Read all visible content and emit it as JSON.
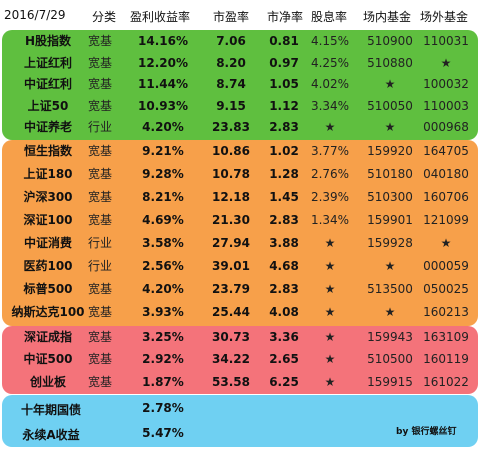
{
  "header": {
    "date": "2016/7/29",
    "category": "分类",
    "earnings_yield": "盈利收益率",
    "pe": "市盈率",
    "pb": "市净率",
    "dividend": "股息率",
    "exchange_fund": "场内基金",
    "otc_fund": "场外基金"
  },
  "colors": {
    "green": "#5fbf3f",
    "orange": "#f7a04a",
    "red": "#f4737a",
    "blue": "#6fd0f2"
  },
  "groups": [
    {
      "name": "green",
      "rows": [
        {
          "name": "H股指数",
          "category": "宽基",
          "yield": "14.16%",
          "pe": "7.06",
          "pb": "0.81",
          "dividend": "4.15%",
          "exchange": "510900",
          "otc": "110031"
        },
        {
          "name": "上证红利",
          "category": "宽基",
          "yield": "12.20%",
          "pe": "8.20",
          "pb": "0.97",
          "dividend": "4.25%",
          "exchange": "510880",
          "otc": "★"
        },
        {
          "name": "中证红利",
          "category": "宽基",
          "yield": "11.44%",
          "pe": "8.74",
          "pb": "1.05",
          "dividend": "4.02%",
          "exchange": "★",
          "otc": "100032"
        },
        {
          "name": "上证50",
          "category": "宽基",
          "yield": "10.93%",
          "pe": "9.15",
          "pb": "1.12",
          "dividend": "3.34%",
          "exchange": "510050",
          "otc": "110003"
        },
        {
          "name": "中证养老",
          "category": "行业",
          "yield": "4.20%",
          "pe": "23.83",
          "pb": "2.83",
          "dividend": "★",
          "exchange": "★",
          "otc": "000968"
        }
      ]
    },
    {
      "name": "orange",
      "rows": [
        {
          "name": "恒生指数",
          "category": "宽基",
          "yield": "9.21%",
          "pe": "10.86",
          "pb": "1.02",
          "dividend": "3.77%",
          "exchange": "159920",
          "otc": "164705"
        },
        {
          "name": "上证180",
          "category": "宽基",
          "yield": "9.28%",
          "pe": "10.78",
          "pb": "1.28",
          "dividend": "2.76%",
          "exchange": "510180",
          "otc": "040180"
        },
        {
          "name": "沪深300",
          "category": "宽基",
          "yield": "8.21%",
          "pe": "12.18",
          "pb": "1.45",
          "dividend": "2.39%",
          "exchange": "510300",
          "otc": "160706"
        },
        {
          "name": "深证100",
          "category": "宽基",
          "yield": "4.69%",
          "pe": "21.30",
          "pb": "2.83",
          "dividend": "1.34%",
          "exchange": "159901",
          "otc": "121099"
        },
        {
          "name": "中证消费",
          "category": "行业",
          "yield": "3.58%",
          "pe": "27.94",
          "pb": "3.88",
          "dividend": "★",
          "exchange": "159928",
          "otc": "★"
        },
        {
          "name": "医药100",
          "category": "行业",
          "yield": "2.56%",
          "pe": "39.01",
          "pb": "4.68",
          "dividend": "★",
          "exchange": "★",
          "otc": "000059"
        },
        {
          "name": "标普500",
          "category": "宽基",
          "yield": "4.20%",
          "pe": "23.79",
          "pb": "2.83",
          "dividend": "★",
          "exchange": "513500",
          "otc": "050025"
        },
        {
          "name": "纳斯达克100",
          "category": "宽基",
          "yield": "3.93%",
          "pe": "25.44",
          "pb": "4.08",
          "dividend": "★",
          "exchange": "★",
          "otc": "160213"
        }
      ]
    },
    {
      "name": "red",
      "rows": [
        {
          "name": "深证成指",
          "category": "宽基",
          "yield": "3.25%",
          "pe": "30.73",
          "pb": "3.36",
          "dividend": "★",
          "exchange": "159943",
          "otc": "163109"
        },
        {
          "name": "中证500",
          "category": "宽基",
          "yield": "2.92%",
          "pe": "34.22",
          "pb": "2.65",
          "dividend": "★",
          "exchange": "510500",
          "otc": "160119"
        },
        {
          "name": "创业板",
          "category": "宽基",
          "yield": "1.87%",
          "pe": "53.58",
          "pb": "6.25",
          "dividend": "★",
          "exchange": "159915",
          "otc": "161022"
        }
      ]
    }
  ],
  "summary": {
    "bond_label": "十年期国债",
    "bond_value": "2.78%",
    "yuebao_label": "永续A收益",
    "yuebao_value": "5.47%",
    "credit": "by 银行螺丝钉"
  }
}
